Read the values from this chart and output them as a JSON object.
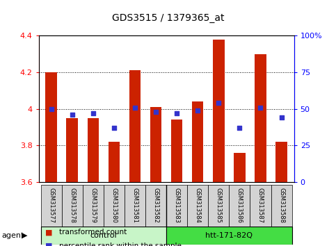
{
  "title": "GDS3515 / 1379365_at",
  "samples": [
    "GSM313577",
    "GSM313578",
    "GSM313579",
    "GSM313580",
    "GSM313581",
    "GSM313582",
    "GSM313583",
    "GSM313584",
    "GSM313585",
    "GSM313586",
    "GSM313587",
    "GSM313588"
  ],
  "transformed_counts": [
    4.2,
    3.95,
    3.95,
    3.82,
    4.21,
    4.01,
    3.94,
    4.04,
    4.38,
    3.76,
    4.3,
    3.82
  ],
  "percentile_ranks": [
    50,
    46,
    47,
    37,
    51,
    48,
    47,
    49,
    54,
    37,
    51,
    44
  ],
  "groups": [
    {
      "label": "control",
      "color": "#C8F5C8",
      "span": [
        0,
        6
      ]
    },
    {
      "label": "htt-171-82Q",
      "color": "#44DD44",
      "span": [
        6,
        12
      ]
    }
  ],
  "ylim": [
    3.6,
    4.4
  ],
  "yticks": [
    3.6,
    3.8,
    4.0,
    4.2,
    4.4
  ],
  "right_yticks": [
    0,
    25,
    50,
    75,
    100
  ],
  "bar_color": "#CC2200",
  "dot_color": "#3333CC",
  "bar_width": 0.55,
  "background_color": "#FFFFFF",
  "plot_bg_color": "#FFFFFF",
  "sample_bg_color": "#D3D3D3",
  "title_fontsize": 10,
  "label_fontsize": 7,
  "tick_fontsize": 8,
  "legend_fontsize": 7.5
}
